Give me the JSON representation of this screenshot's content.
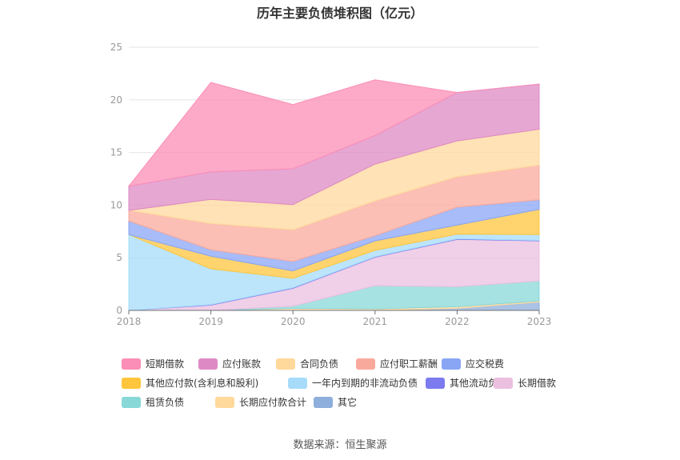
{
  "title": "历年主要负债堆积图（亿元）",
  "source": "数据来源：恒生聚源",
  "chart_data": {
    "type": "area",
    "stacked": true,
    "categories": [
      "2018",
      "2019",
      "2020",
      "2021",
      "2022",
      "2023"
    ],
    "ylim": [
      0,
      25
    ],
    "yticks": [
      0,
      5,
      10,
      15,
      20,
      25
    ],
    "grid": true,
    "legend_position": "bottom",
    "series": [
      {
        "name": "其它",
        "color": "#8eaedb",
        "values": [
          0.0,
          0.0,
          0.0,
          0.0,
          0.2,
          0.8
        ]
      },
      {
        "name": "长期应付款合计",
        "color": "#ffd89c",
        "values": [
          0.0,
          0.0,
          0.2,
          0.15,
          0.15,
          0.1
        ]
      },
      {
        "name": "租赁负债",
        "color": "#88d8d8",
        "values": [
          0.0,
          0.0,
          0.2,
          2.2,
          1.9,
          1.9
        ]
      },
      {
        "name": "长期借款",
        "color": "#ebbfe0",
        "values": [
          0.0,
          0.5,
          1.7,
          2.7,
          4.5,
          3.8
        ]
      },
      {
        "name": "其他流动负债",
        "color": "#7b7bef",
        "values": [
          0.0,
          0.05,
          0.05,
          0.05,
          0.05,
          0.05
        ]
      },
      {
        "name": "一年内到期的非流动负债",
        "color": "#a6dcfa",
        "values": [
          7.2,
          3.4,
          0.9,
          0.6,
          0.45,
          0.55
        ]
      },
      {
        "name": "其他应付款(含利息和股利)",
        "color": "#ffc63d",
        "values": [
          0.0,
          1.2,
          0.7,
          0.9,
          0.85,
          2.4
        ]
      },
      {
        "name": "应交税费",
        "color": "#89a6f5",
        "values": [
          1.3,
          0.6,
          0.9,
          0.5,
          1.7,
          0.9
        ]
      },
      {
        "name": "应付职工薪酬",
        "color": "#f9a99c",
        "values": [
          1.0,
          2.5,
          3.0,
          3.3,
          2.9,
          3.3
        ]
      },
      {
        "name": "合同负债",
        "color": "#ffd89c",
        "values": [
          0.0,
          2.3,
          2.4,
          3.5,
          3.4,
          3.4
        ]
      },
      {
        "name": "应付账款",
        "color": "#dd8ac4",
        "values": [
          2.3,
          2.6,
          3.4,
          2.7,
          4.6,
          4.3
        ]
      },
      {
        "name": "短期借款",
        "color": "#fb8eb6",
        "values": [
          0.0,
          8.5,
          6.1,
          5.3,
          0.0,
          0.0
        ]
      }
    ],
    "legend_order": [
      "短期借款",
      "应付账款",
      "合同负债",
      "应付职工薪酬",
      "应交税费",
      "其他应付款(含利息和股利)",
      "一年内到期的非流动负债",
      "其他流动负债",
      "长期借款",
      "租赁负债",
      "长期应付款合计",
      "其它"
    ]
  }
}
